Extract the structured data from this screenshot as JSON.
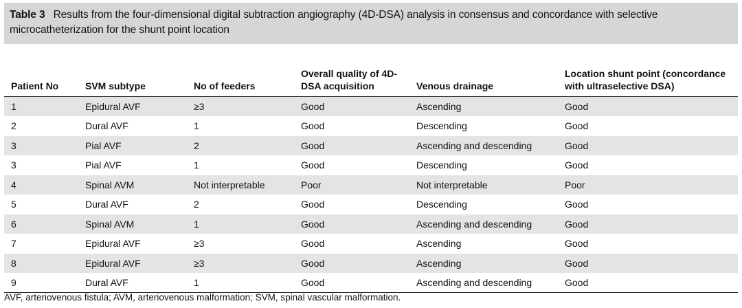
{
  "caption": {
    "label": "Table 3",
    "text": "Results from the four-dimensional digital subtraction angiography (4D-DSA) analysis in consensus and concordance with selective microcatheterization for the shunt point location"
  },
  "table": {
    "headers": [
      "Patient No",
      "SVM subtype",
      "No of feeders",
      "Overall quality of 4D-DSA acquisition",
      "Venous drainage",
      "Location shunt point (concordance with ultraselective DSA)"
    ],
    "rows": [
      [
        "1",
        "Epidural AVF",
        "≥3",
        "Good",
        "Ascending",
        "Good"
      ],
      [
        "2",
        "Dural AVF",
        "1",
        "Good",
        "Descending",
        "Good"
      ],
      [
        "3",
        "Pial AVF",
        "2",
        "Good",
        "Ascending and descending",
        "Good"
      ],
      [
        "3",
        "Pial AVF",
        "1",
        "Good",
        "Descending",
        "Good"
      ],
      [
        "4",
        "Spinal AVM",
        "Not interpretable",
        "Poor",
        "Not interpretable",
        "Poor"
      ],
      [
        "5",
        "Dural AVF",
        "2",
        "Good",
        "Descending",
        "Good"
      ],
      [
        "6",
        "Spinal AVM",
        "1",
        "Good",
        "Ascending and descending",
        "Good"
      ],
      [
        "7",
        "Epidural AVF",
        "≥3",
        "Good",
        "Ascending",
        "Good"
      ],
      [
        "8",
        "Epidural AVF",
        "≥3",
        "Good",
        "Ascending",
        "Good"
      ],
      [
        "9",
        "Dural AVF",
        "1",
        "Good",
        "Ascending and descending",
        "Good"
      ]
    ]
  },
  "footnote": "AVF, arteriovenous fistula; AVM, arteriovenous malformation; SVM, spinal vascular malformation.",
  "colors": {
    "caption_bg": "#d6d6d6",
    "row_alt_bg": "#e4e4e4",
    "rule": "#222222"
  }
}
